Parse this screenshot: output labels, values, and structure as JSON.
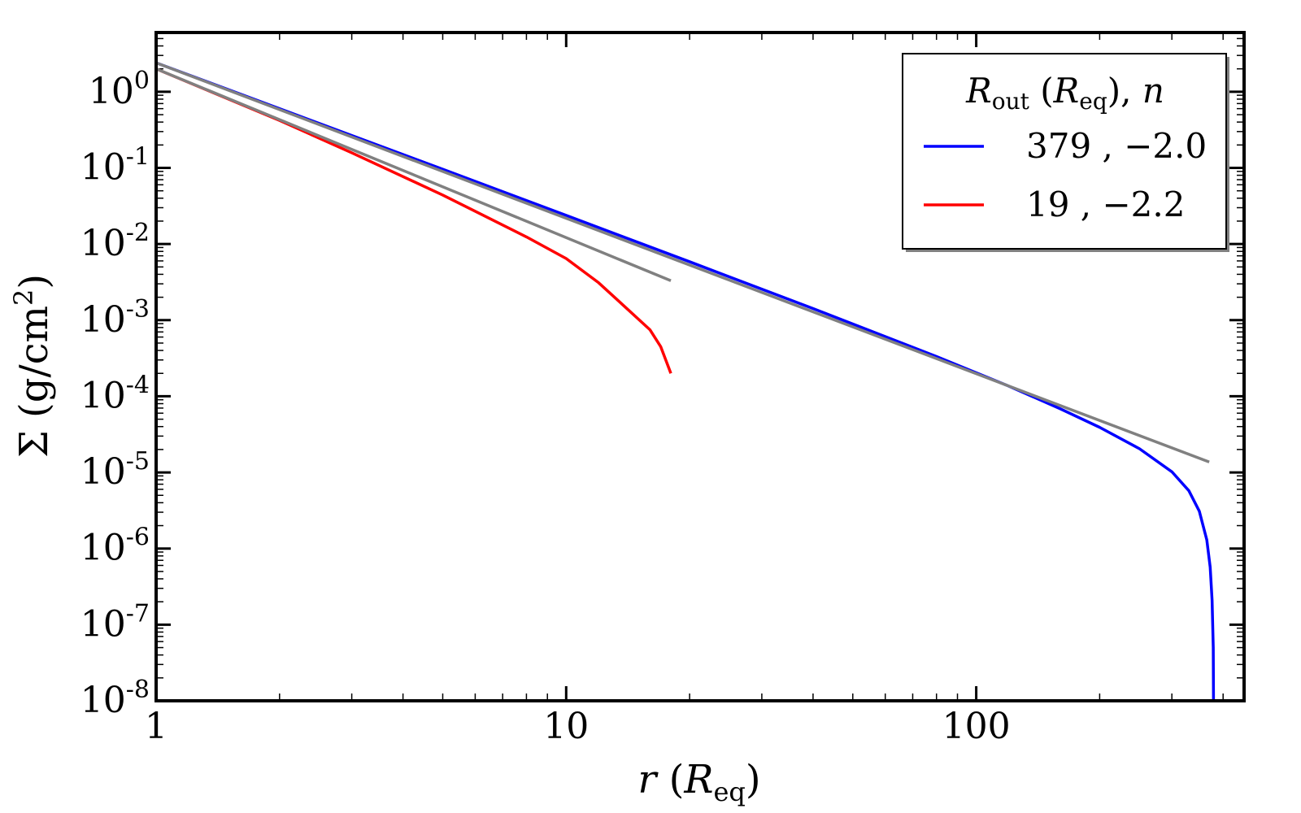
{
  "chart_data": {
    "type": "line",
    "xscale": "log",
    "yscale": "log",
    "xlim": [
      1,
      450
    ],
    "ylim": [
      1e-08,
      6
    ],
    "xlabel": {
      "var": "r",
      "open": " (",
      "sym": "R",
      "sub": "eq",
      "close": ")"
    },
    "ylabel": {
      "sym": "Σ",
      "text": " (g/cm",
      "sup": "2",
      "close": ")"
    },
    "x_ticks": [
      {
        "value": 1,
        "label": "1"
      },
      {
        "value": 10,
        "label": "10"
      },
      {
        "value": 100,
        "label": "100"
      }
    ],
    "y_ticks": [
      {
        "value": 1,
        "base": "10",
        "exp": "0"
      },
      {
        "value": 0.1,
        "base": "10",
        "exp": "-1"
      },
      {
        "value": 0.01,
        "base": "10",
        "exp": "-2"
      },
      {
        "value": 0.001,
        "base": "10",
        "exp": "-3"
      },
      {
        "value": 0.0001,
        "base": "10",
        "exp": "-4"
      },
      {
        "value": 1e-05,
        "base": "10",
        "exp": "-5"
      },
      {
        "value": 1e-06,
        "base": "10",
        "exp": "-6"
      },
      {
        "value": 1e-07,
        "base": "10",
        "exp": "-7"
      },
      {
        "value": 1e-08,
        "base": "10",
        "exp": "-8"
      }
    ],
    "legend": {
      "title": {
        "sym": "R",
        "sub": "out",
        "mid": " (",
        "sym2": "R",
        "sub2": "eq",
        "end": "), ",
        "n": "n"
      },
      "placement": "top-right"
    },
    "series": [
      {
        "name": "379 , −2.0",
        "color": "#0000ff",
        "in_legend": true,
        "x": [
          1,
          2,
          5,
          10,
          20,
          40,
          80,
          120,
          160,
          200,
          250,
          300,
          330,
          350,
          365,
          372,
          376,
          378.5,
          379
        ],
        "y": [
          2.4,
          0.6,
          0.096,
          0.0238,
          0.00585,
          0.00142,
          0.000333,
          0.000136,
          6.88e-05,
          3.91e-05,
          2.05e-05,
          1.02e-05,
          5.75e-06,
          3.09e-06,
          1.3e-06,
          5.7e-07,
          2.1e-07,
          5e-08,
          1e-08
        ]
      },
      {
        "name": "19 , −2.2",
        "color": "#ff0000",
        "in_legend": true,
        "x": [
          1,
          2,
          3,
          5,
          8,
          10,
          12,
          14,
          16,
          17,
          18
        ],
        "y": [
          2.0,
          0.42,
          0.158,
          0.044,
          0.0124,
          0.00645,
          0.0031,
          0.00145,
          0.00075,
          0.00045,
          0.0002
        ]
      },
      {
        "name": "power law n = −2.0",
        "color": "#808080",
        "in_legend": false,
        "x": [
          1,
          370
        ],
        "y": [
          2.4,
          1.37e-05
        ]
      },
      {
        "name": "power law n = −2.2",
        "color": "#808080",
        "in_legend": false,
        "x": [
          1,
          18
        ],
        "y": [
          2.0,
          0.0033
        ]
      }
    ]
  }
}
